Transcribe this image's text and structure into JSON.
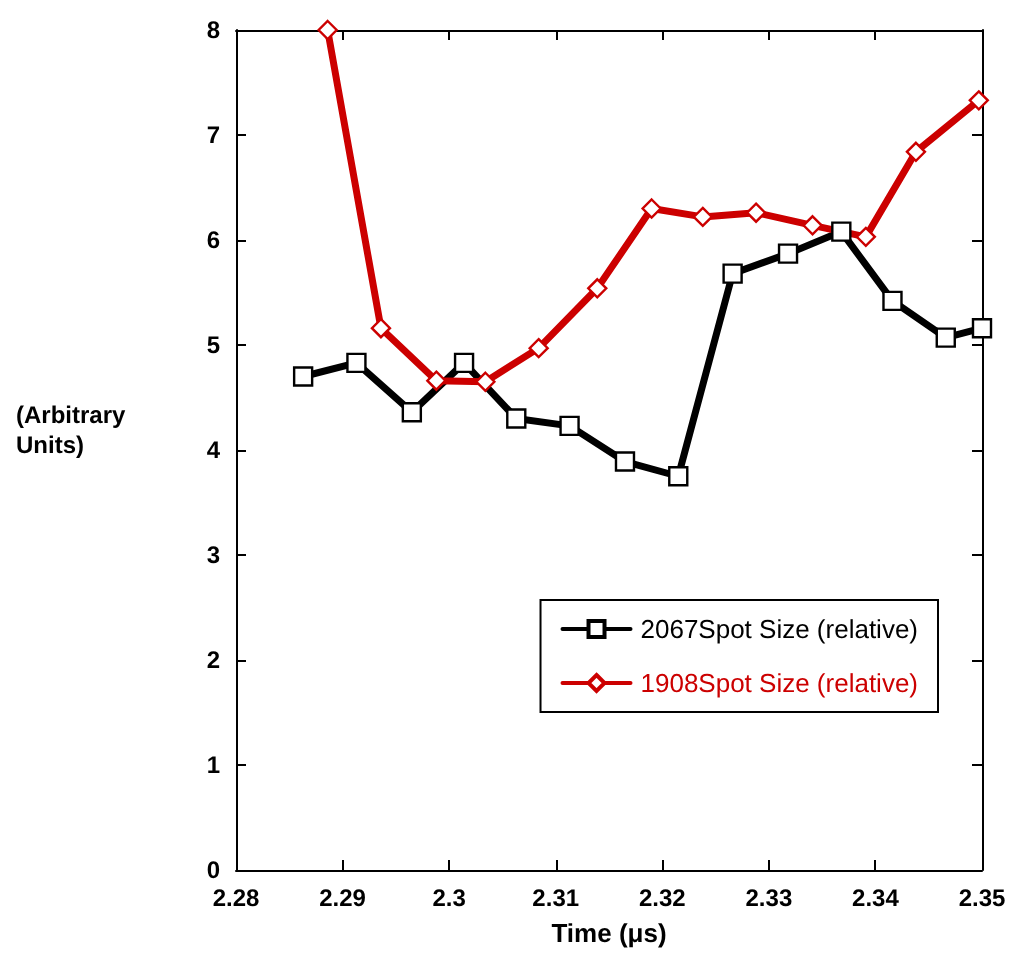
{
  "chart_data": {
    "type": "line",
    "xlabel": "Time (μs)",
    "ylabel": "(Arbitrary\nUnits)",
    "xlim": [
      2.28,
      2.35
    ],
    "xticks": [
      2.28,
      2.29,
      2.3,
      2.31,
      2.32,
      2.33,
      2.34,
      2.35
    ],
    "ylim": [
      0,
      8
    ],
    "yticks": [
      0,
      1,
      2,
      3,
      4,
      5,
      6,
      7,
      8
    ],
    "grid": false,
    "legend": "bottom right",
    "line_style": "solid",
    "series": [
      {
        "name": "2067Spot Size (relative)",
        "color": "#000000",
        "marker": "square",
        "x": [
          2.2863,
          2.2913,
          2.2965,
          2.3014,
          2.3063,
          2.3113,
          2.3165,
          2.3215,
          2.3266,
          2.3318,
          2.3368,
          2.3416,
          2.3466,
          2.35
        ],
        "values": [
          4.7,
          4.83,
          4.36,
          4.83,
          4.3,
          4.23,
          3.89,
          3.75,
          5.68,
          5.87,
          6.08,
          5.42,
          5.07,
          5.16
        ]
      },
      {
        "name": "1908Spot Size (relative)",
        "color": "#cc0000",
        "marker": "diamond",
        "x": [
          2.2886,
          2.2936,
          2.2988,
          2.3034,
          2.3084,
          2.3139,
          2.319,
          2.3238,
          2.3288,
          2.3341,
          2.3391,
          2.3438,
          2.3497
        ],
        "values": [
          8,
          5.16,
          4.66,
          4.65,
          4.97,
          5.54,
          6.3,
          6.22,
          6.26,
          6.14,
          6.03,
          6.84,
          7.33
        ]
      }
    ]
  }
}
